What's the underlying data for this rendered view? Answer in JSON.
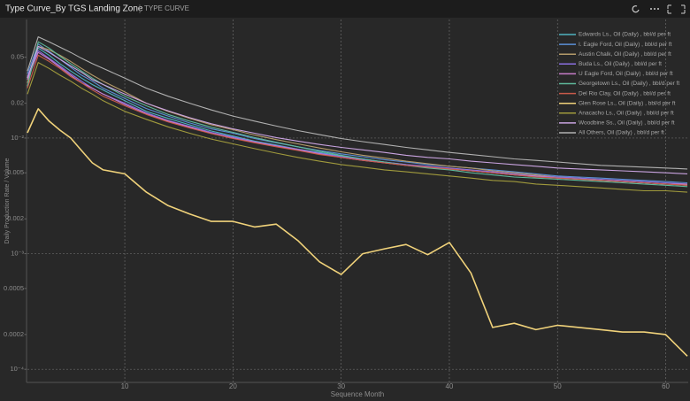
{
  "header": {
    "title": "Type Curve_By TGS Landing Zone",
    "tag": "TYPE CURVE"
  },
  "chart_data": {
    "type": "line",
    "x_label": "Sequence Month",
    "y_label": "Daily Production Rate / Volume",
    "x": [
      1,
      2,
      3,
      4,
      5,
      6,
      7,
      8,
      10,
      12,
      14,
      16,
      18,
      20,
      22,
      24,
      26,
      28,
      30,
      32,
      34,
      36,
      38,
      40,
      42,
      44,
      46,
      48,
      50,
      52,
      54,
      56,
      58,
      60,
      62
    ],
    "xlim": [
      1,
      62
    ],
    "xticks": [
      10,
      20,
      30,
      40,
      50,
      60
    ],
    "ylim": [
      7.7e-05,
      0.106
    ],
    "log_y": true,
    "grid": true,
    "legend": "top-right",
    "yticks": [
      {
        "value": 0.0001,
        "label": "10⁻⁴"
      },
      0.0002,
      0.0005,
      {
        "value": 0.001,
        "label": "10⁻³"
      },
      0.002,
      0.005,
      {
        "value": 0.01,
        "label": "10⁻²"
      },
      0.02,
      0.05
    ],
    "ytick_labels_short": null,
    "series": [
      {
        "name": "Edwards Ls., Oil (Daily) , bbl/d per ft",
        "color": "#4fb3bf",
        "values": [
          0.033,
          0.06,
          0.052,
          0.044,
          0.038,
          0.033,
          0.029,
          0.026,
          0.021,
          0.017,
          0.0148,
          0.013,
          0.0115,
          0.0104,
          0.0094,
          0.0087,
          0.008,
          0.0075,
          0.007,
          0.0066,
          0.0062,
          0.0059,
          0.0056,
          0.0054,
          0.0052,
          0.005,
          0.0048,
          0.0046,
          0.0045,
          0.0044,
          0.0043,
          0.0042,
          0.0041,
          0.004,
          0.0039
        ]
      },
      {
        "name": "I. Eagle Ford, Oil (Daily) , bbl/d per ft",
        "color": "#5b8fd6",
        "values": [
          0.036,
          0.065,
          0.056,
          0.048,
          0.041,
          0.035,
          0.031,
          0.027,
          0.022,
          0.018,
          0.0155,
          0.0135,
          0.012,
          0.011,
          0.0099,
          0.0091,
          0.0084,
          0.0078,
          0.0073,
          0.0069,
          0.0065,
          0.0062,
          0.0059,
          0.0057,
          0.0055,
          0.0053,
          0.0051,
          0.0049,
          0.0047,
          0.0046,
          0.0045,
          0.0044,
          0.0043,
          0.0042,
          0.0041
        ]
      },
      {
        "name": "Austin Chalk, Oil (Daily) , bbl/d per ft",
        "color": "#b59b6a",
        "values": [
          0.03,
          0.062,
          0.058,
          0.052,
          0.046,
          0.04,
          0.035,
          0.031,
          0.025,
          0.02,
          0.017,
          0.0148,
          0.013,
          0.0118,
          0.0106,
          0.0097,
          0.0089,
          0.0082,
          0.0076,
          0.0071,
          0.0067,
          0.0063,
          0.006,
          0.0057,
          0.0055,
          0.0052,
          0.005,
          0.0048,
          0.0046,
          0.0045,
          0.0043,
          0.0042,
          0.0041,
          0.004,
          0.0039
        ]
      },
      {
        "name": "Buda Ls., Oil (Daily) , bbl/d per ft",
        "color": "#8a6fe0",
        "values": [
          0.034,
          0.057,
          0.049,
          0.042,
          0.036,
          0.031,
          0.027,
          0.024,
          0.02,
          0.0165,
          0.0142,
          0.0126,
          0.0112,
          0.0102,
          0.0093,
          0.0086,
          0.008,
          0.0074,
          0.0069,
          0.0065,
          0.0062,
          0.0059,
          0.0057,
          0.0055,
          0.0053,
          0.0051,
          0.0049,
          0.0047,
          0.0046,
          0.0045,
          0.0044,
          0.0043,
          0.0042,
          0.0041,
          0.004
        ]
      },
      {
        "name": "U Eagle Ford, Oil (Daily) , bbl/d per ft",
        "color": "#c77dc9",
        "values": [
          0.032,
          0.055,
          0.048,
          0.041,
          0.035,
          0.03,
          0.027,
          0.024,
          0.0195,
          0.0162,
          0.014,
          0.0124,
          0.011,
          0.01,
          0.0092,
          0.0085,
          0.0079,
          0.0073,
          0.0068,
          0.0064,
          0.0061,
          0.0058,
          0.0056,
          0.0054,
          0.0052,
          0.005,
          0.0048,
          0.0047,
          0.0045,
          0.0044,
          0.0043,
          0.0042,
          0.0041,
          0.004,
          0.004
        ]
      },
      {
        "name": "Georgetown Ls., Oil (Daily) , bbl/d per ft",
        "color": "#5fb89a",
        "values": [
          0.028,
          0.068,
          0.06,
          0.051,
          0.044,
          0.038,
          0.033,
          0.029,
          0.023,
          0.019,
          0.016,
          0.014,
          0.0124,
          0.0112,
          0.0101,
          0.0092,
          0.0084,
          0.0077,
          0.0071,
          0.0066,
          0.0062,
          0.0058,
          0.0055,
          0.0053,
          0.005,
          0.0048,
          0.0046,
          0.0045,
          0.0044,
          0.0043,
          0.0042,
          0.0041,
          0.004,
          0.0039,
          0.0038
        ]
      },
      {
        "name": "Del Rio Clay, Oil (Daily) , bbl/d per ft",
        "color": "#c85a4a",
        "values": [
          0.027,
          0.052,
          0.046,
          0.04,
          0.034,
          0.03,
          0.026,
          0.023,
          0.019,
          0.016,
          0.0138,
          0.0122,
          0.0109,
          0.0099,
          0.0091,
          0.0084,
          0.0078,
          0.0072,
          0.0068,
          0.0064,
          0.0061,
          0.0058,
          0.0056,
          0.0054,
          0.0052,
          0.005,
          0.0048,
          0.0046,
          0.0045,
          0.0044,
          0.0043,
          0.0042,
          0.0041,
          0.004,
          0.0039
        ]
      },
      {
        "name": "Glen Rose Ls., Oil (Daily) , bbl/d per ft",
        "color": "#f0d27a",
        "values": [
          0.0111,
          0.0179,
          0.014,
          0.0117,
          0.01,
          0.0078,
          0.0061,
          0.0053,
          0.0049,
          0.0034,
          0.0026,
          0.0022,
          0.0019,
          0.0019,
          0.0017,
          0.0018,
          0.0013,
          0.00085,
          0.00066,
          0.001,
          0.0011,
          0.0012,
          0.00098,
          0.00125,
          0.00068,
          0.00023,
          0.00025,
          0.00022,
          0.00024,
          0.00023,
          0.00022,
          0.00021,
          0.00021,
          0.0002,
          0.00013
        ]
      },
      {
        "name": "Anacacho Ls., Oil (Daily) , bbl/d per ft",
        "color": "#a09a3c",
        "values": [
          0.024,
          0.045,
          0.04,
          0.035,
          0.031,
          0.027,
          0.024,
          0.021,
          0.017,
          0.0145,
          0.0125,
          0.011,
          0.0098,
          0.0089,
          0.0081,
          0.0074,
          0.0068,
          0.0063,
          0.0059,
          0.0056,
          0.0053,
          0.0051,
          0.0049,
          0.0047,
          0.0045,
          0.0043,
          0.0042,
          0.004,
          0.0039,
          0.0038,
          0.0037,
          0.0036,
          0.0035,
          0.0035,
          0.0034
        ]
      },
      {
        "name": "Woodbine Ss., Oil (Daily) , bbl/d per ft",
        "color": "#c9a3e0",
        "values": [
          0.033,
          0.062,
          0.055,
          0.048,
          0.042,
          0.037,
          0.032,
          0.029,
          0.024,
          0.02,
          0.0172,
          0.015,
          0.0133,
          0.012,
          0.011,
          0.0101,
          0.0094,
          0.0088,
          0.0083,
          0.0079,
          0.0075,
          0.0071,
          0.0068,
          0.0066,
          0.0063,
          0.0061,
          0.0059,
          0.0057,
          0.0055,
          0.0054,
          0.0053,
          0.0052,
          0.0051,
          0.005,
          0.0049
        ]
      },
      {
        "name": "All Others, Oil (Daily) , bbl/d per ft",
        "color": "#b0b0b0",
        "values": [
          0.038,
          0.075,
          0.068,
          0.061,
          0.055,
          0.049,
          0.044,
          0.04,
          0.033,
          0.027,
          0.023,
          0.02,
          0.0175,
          0.0155,
          0.014,
          0.0127,
          0.0116,
          0.0107,
          0.0099,
          0.0093,
          0.0088,
          0.0083,
          0.0079,
          0.0075,
          0.0072,
          0.0069,
          0.0066,
          0.0064,
          0.0062,
          0.006,
          0.0058,
          0.0057,
          0.0056,
          0.0055,
          0.0054
        ]
      }
    ]
  }
}
